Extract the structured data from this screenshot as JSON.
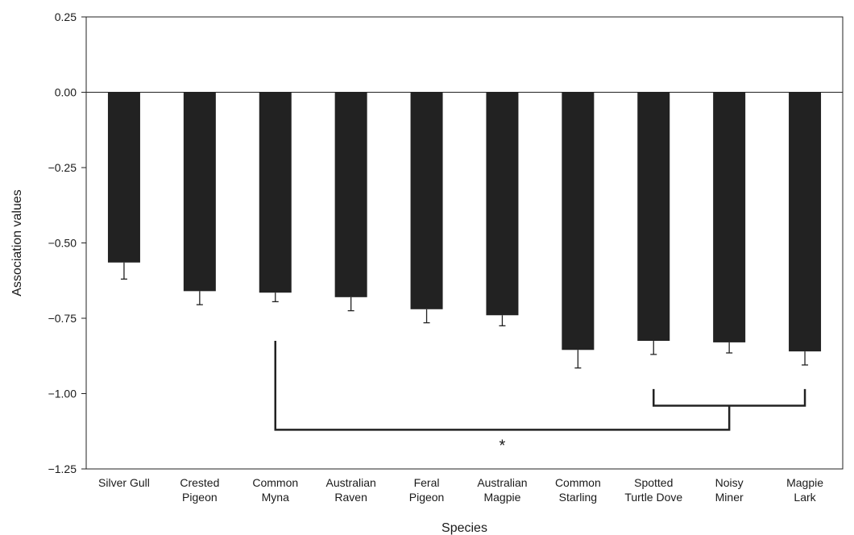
{
  "chart_data": {
    "type": "bar",
    "title": "",
    "xlabel": "Species",
    "ylabel": "Association values",
    "ylim": [
      -1.25,
      0.25
    ],
    "yticks": [
      0.25,
      0.0,
      -0.25,
      -0.5,
      -0.75,
      -1.0,
      -1.25
    ],
    "ytick_labels": [
      "0.25",
      "0.00",
      "−0.25",
      "−0.50",
      "−0.75",
      "−1.00",
      "−1.25"
    ],
    "categories": [
      [
        "Silver Gull"
      ],
      [
        "Crested",
        "Pigeon"
      ],
      [
        "Common",
        "Myna"
      ],
      [
        "Australian",
        "Raven"
      ],
      [
        "Feral",
        "Pigeon"
      ],
      [
        "Australian",
        "Magpie"
      ],
      [
        "Common",
        "Starling"
      ],
      [
        "Spotted",
        "Turtle Dove"
      ],
      [
        "Noisy",
        "Miner"
      ],
      [
        "Magpie",
        "Lark"
      ]
    ],
    "values": [
      -0.565,
      -0.66,
      -0.665,
      -0.68,
      -0.72,
      -0.74,
      -0.855,
      -0.825,
      -0.83,
      -0.86
    ],
    "error": [
      0.055,
      0.045,
      0.03,
      0.045,
      0.045,
      0.035,
      0.06,
      0.045,
      0.035,
      0.045
    ],
    "bar_color": "#222222",
    "grid": false,
    "annotations": {
      "significance_marker": "*",
      "bracket_groups": {
        "left_group_category_index": 2,
        "right_group_category_indices": [
          7,
          9
        ]
      }
    }
  }
}
